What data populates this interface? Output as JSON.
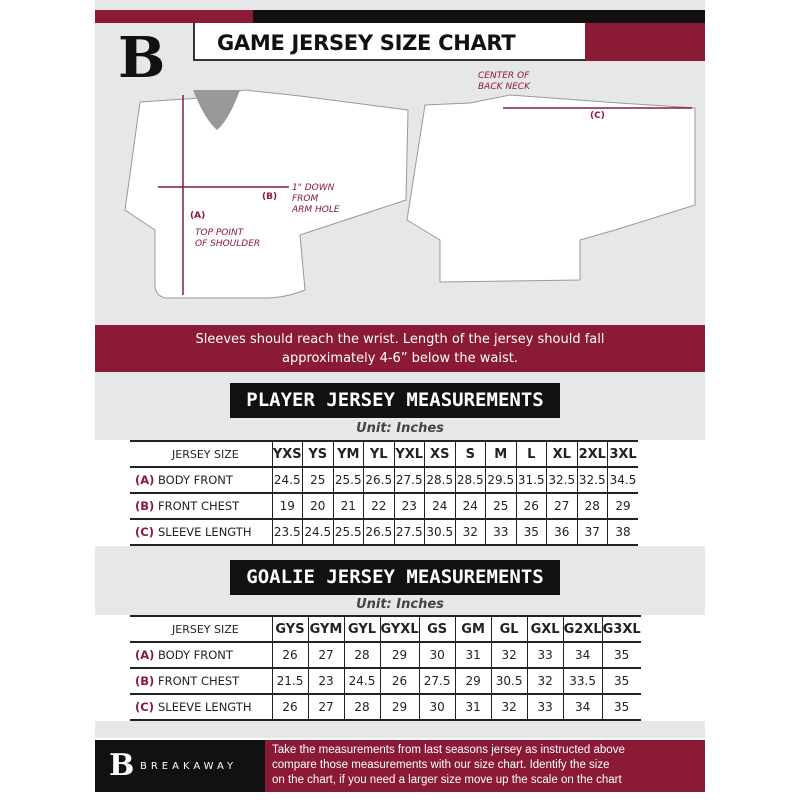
{
  "header": {
    "title": "GAME JERSEY SIZE CHART",
    "logo_letter": "B"
  },
  "diagram": {
    "back_neck_note": [
      "CENTER OF",
      "BACK NECK"
    ],
    "label_c": "(C)",
    "label_b": "(B)",
    "armhole_note": [
      "1\" DOWN",
      "FROM",
      "ARM HOLE"
    ],
    "label_a": "(A)",
    "shoulder_note": [
      "TOP POINT",
      "OF SHOULDER"
    ]
  },
  "banner": {
    "lines": [
      "Sleeves should reach the wrist. Length of the jersey should fall",
      "approximately 4-6” below the waist."
    ]
  },
  "player": {
    "heading": "PLAYER JERSEY MEASUREMENTS",
    "unit": "Unit: Inches",
    "size_label": "JERSEY SIZE",
    "sizes": [
      "YXS",
      "YS",
      "YM",
      "YL",
      "YXL",
      "XS",
      "S",
      "M",
      "L",
      "XL",
      "2XL",
      "3XL"
    ],
    "rows": [
      {
        "letter": "(A)",
        "label": "BODY FRONT",
        "values": [
          "24.5",
          "25",
          "25.5",
          "26.5",
          "27.5",
          "28.5",
          "28.5",
          "29.5",
          "31.5",
          "32.5",
          "32.5",
          "34.5"
        ]
      },
      {
        "letter": "(B)",
        "label": "FRONT CHEST",
        "values": [
          "19",
          "20",
          "21",
          "22",
          "23",
          "24",
          "24",
          "25",
          "26",
          "27",
          "28",
          "29"
        ]
      },
      {
        "letter": "(C)",
        "label": "SLEEVE LENGTH",
        "values": [
          "23.5",
          "24.5",
          "25.5",
          "26.5",
          "27.5",
          "30.5",
          "32",
          "33",
          "35",
          "36",
          "37",
          "38"
        ]
      }
    ]
  },
  "goalie": {
    "heading": "GOALIE JERSEY MEASUREMENTS",
    "unit": "Unit: Inches",
    "size_label": "JERSEY SIZE",
    "sizes": [
      "GYS",
      "GYM",
      "GYL",
      "GYXL",
      "GS",
      "GM",
      "GL",
      "GXL",
      "G2XL",
      "G3XL"
    ],
    "rows": [
      {
        "letter": "(A)",
        "label": "BODY FRONT",
        "values": [
          "26",
          "27",
          "28",
          "29",
          "30",
          "31",
          "32",
          "33",
          "34",
          "35"
        ]
      },
      {
        "letter": "(B)",
        "label": "FRONT CHEST",
        "values": [
          "21.5",
          "23",
          "24.5",
          "26",
          "27.5",
          "29",
          "30.5",
          "32",
          "33.5",
          "35"
        ]
      },
      {
        "letter": "(C)",
        "label": "SLEEVE LENGTH",
        "values": [
          "26",
          "27",
          "28",
          "29",
          "30",
          "31",
          "32",
          "33",
          "34",
          "35"
        ]
      }
    ]
  },
  "footer": {
    "brand": "BREAKAWAY",
    "lines": [
      "Take the measurements from last seasons jersey as instructed above",
      "compare those measurements  with our size chart. Identify the size",
      "on the chart, if you need a larger size move up the scale on the chart"
    ]
  },
  "colors": {
    "maroon": "#8a1a36",
    "black": "#111111",
    "panel": "#e6e7e8"
  }
}
